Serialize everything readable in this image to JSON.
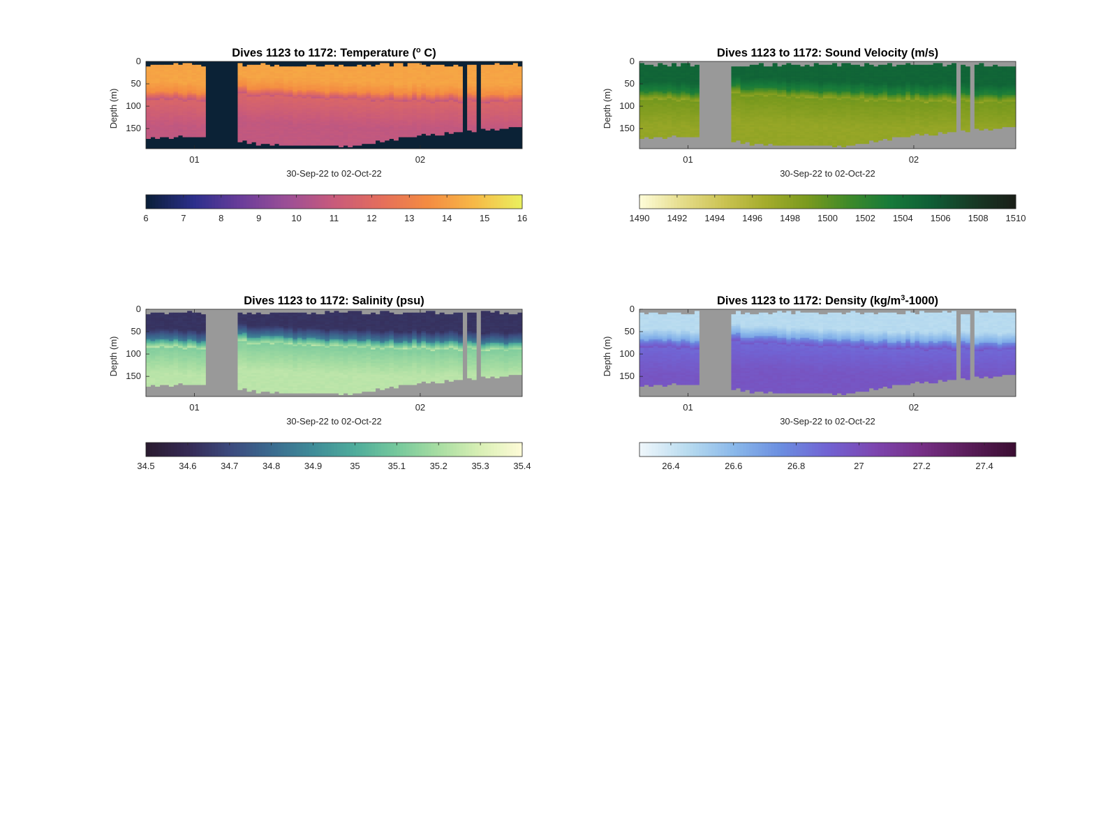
{
  "chart_data": [
    {
      "type": "heatmap",
      "title": "Dives 1123 to 1172: Temperature (° C)",
      "title_parts": [
        "Dives 1123 to 1172: Temperature (",
        "o",
        " C)"
      ],
      "xlabel": "30-Sep-22 to 02-Oct-22",
      "ylabel": "Depth (m)",
      "x_ticks": [
        "01",
        "02"
      ],
      "y_ticks": [
        0,
        50,
        100,
        150
      ],
      "ylim": [
        0,
        195
      ],
      "colorbar_label_min": 6,
      "colorbar_label_max": 16,
      "colorbar_ticks": [
        "6",
        "7",
        "8",
        "9",
        "10",
        "11",
        "12",
        "13",
        "14",
        "15",
        "16"
      ],
      "colormap": [
        "#0b1f3a",
        "#2c2f8c",
        "#6a3d9a",
        "#9c4f96",
        "#c85a7b",
        "#e46e5c",
        "#f48b42",
        "#f7b847",
        "#eaef5e"
      ],
      "missing_color": "#0b2236",
      "surface_value": 14.2,
      "thermocline_value": 13.2,
      "deep_value": 10.8
    },
    {
      "type": "heatmap",
      "title": "Dives 1123 to 1172: Sound Velocity (m/s)",
      "title_parts": [
        "Dives 1123 to 1172: Sound Velocity (m/s)"
      ],
      "xlabel": "30-Sep-22 to 02-Oct-22",
      "ylabel": "Depth (m)",
      "x_ticks": [
        "01",
        "02"
      ],
      "y_ticks": [
        0,
        50,
        100,
        150
      ],
      "ylim": [
        0,
        195
      ],
      "colorbar_label_min": 1490,
      "colorbar_label_max": 1510,
      "colorbar_ticks": [
        "1490",
        "1492",
        "1494",
        "1496",
        "1498",
        "1500",
        "1502",
        "1504",
        "1506",
        "1508",
        "1510"
      ],
      "colormap": [
        "#fdfbd6",
        "#e5dc8a",
        "#cbc352",
        "#a4ac2b",
        "#7a9a1e",
        "#3f8a29",
        "#177a3a",
        "#0f5e36",
        "#173a25",
        "#1a1f18"
      ],
      "missing_color": "#999999",
      "surface_value": 1505.0,
      "thermocline_value": 1501.5,
      "deep_value": 1497.5
    },
    {
      "type": "heatmap",
      "title": "Dives 1123 to 1172: Salinity (psu)",
      "title_parts": [
        "Dives 1123 to 1172: Salinity (psu)"
      ],
      "xlabel": "30-Sep-22 to 02-Oct-22",
      "ylabel": "Depth (m)",
      "x_ticks": [
        "01",
        "02"
      ],
      "y_ticks": [
        0,
        50,
        100,
        150
      ],
      "ylim": [
        0,
        195
      ],
      "colorbar_label_min": 34.5,
      "colorbar_label_max": 35.4,
      "colorbar_ticks": [
        "34.5",
        "34.6",
        "34.7",
        "34.8",
        "34.9",
        "35",
        "35.1",
        "35.2",
        "35.3",
        "35.4"
      ],
      "colormap": [
        "#2a1b30",
        "#352a55",
        "#3c4a7e",
        "#3b6b8f",
        "#3f8c98",
        "#4fac9b",
        "#75c89c",
        "#a7dda2",
        "#d8efb4",
        "#fdfbd6"
      ],
      "missing_color": "#999999",
      "surface_value": 34.63,
      "thermocline_value": 34.95,
      "deep_value": 35.24
    },
    {
      "type": "heatmap",
      "title": "Dives 1123 to 1172: Density (kg/m³-1000)",
      "title_parts": [
        "Dives 1123 to 1172: Density (kg/m",
        "3",
        "-1000)"
      ],
      "xlabel": "30-Sep-22 to 02-Oct-22",
      "ylabel": "Depth (m)",
      "x_ticks": [
        "01",
        "02"
      ],
      "y_ticks": [
        0,
        50,
        100,
        150
      ],
      "ylim": [
        0,
        195
      ],
      "colorbar_label_min": 26.3,
      "colorbar_label_max": 27.5,
      "colorbar_ticks": [
        "26.4",
        "26.6",
        "26.8",
        "27",
        "27.2",
        "27.4"
      ],
      "colormap": [
        "#eef6fb",
        "#b8dbef",
        "#8ab8ea",
        "#6b8ee0",
        "#7163d3",
        "#7d46b0",
        "#762f86",
        "#5a1d5a",
        "#3c0e33"
      ],
      "missing_color": "#999999",
      "surface_value": 26.45,
      "thermocline_value": 26.75,
      "deep_value": 26.97
    }
  ]
}
